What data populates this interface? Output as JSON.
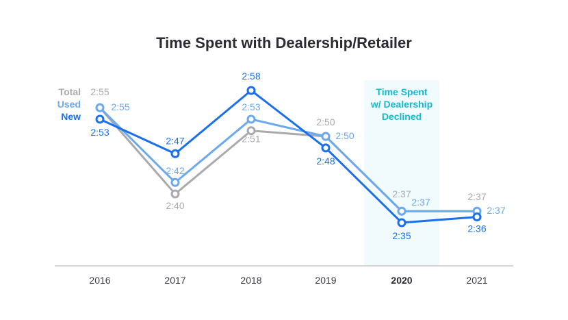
{
  "chart_data": {
    "type": "line",
    "title": "Time Spent with Dealership/Retailer",
    "xlabel": "",
    "ylabel": "",
    "categories": [
      "2016",
      "2017",
      "2018",
      "2019",
      "2020",
      "2021"
    ],
    "highlight_category": "2020",
    "grid": false,
    "legend_position": "left",
    "series": [
      {
        "name": "Total",
        "color": "#a9a9ae",
        "values_seconds": [
          175,
          160,
          171,
          170,
          157,
          157
        ],
        "labels": [
          "2:55",
          "2:40",
          "2:51",
          "2:50",
          "2:37",
          "2:37"
        ]
      },
      {
        "name": "Used",
        "color": "#6aa8f0",
        "values_seconds": [
          175,
          162,
          173,
          170,
          157,
          157
        ],
        "labels": [
          "2:55",
          "2:42",
          "2:53",
          "2:50",
          "2:37",
          "2:37"
        ]
      },
      {
        "name": "New",
        "color": "#1a6fee",
        "values_seconds": [
          173,
          167,
          178,
          168,
          155,
          156
        ],
        "labels": [
          "2:53",
          "2:47",
          "2:58",
          "2:48",
          "2:35",
          "2:36"
        ]
      }
    ],
    "annotation": {
      "category": "2020",
      "text_lines": [
        "Time Spent",
        "w/ Dealership",
        "Declined"
      ],
      "color": "#16b9cc",
      "background": "#f1fbfd"
    }
  }
}
